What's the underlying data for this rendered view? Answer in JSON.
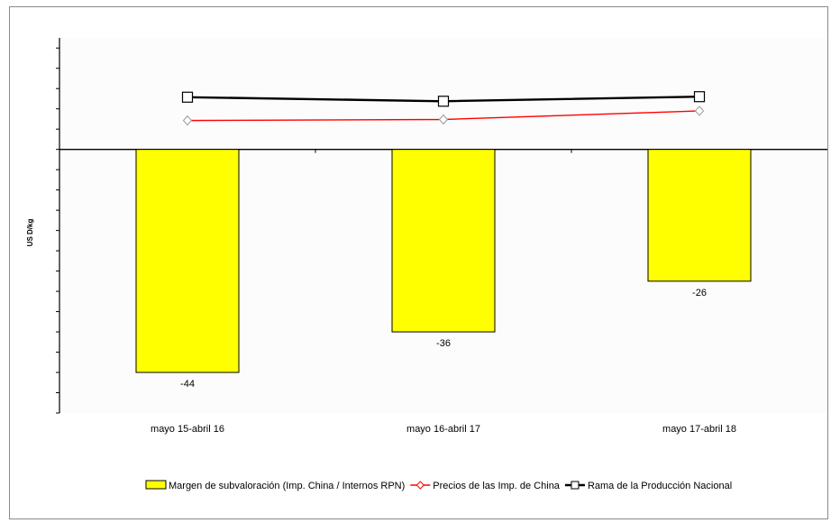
{
  "chart_data": {
    "type": "bar",
    "title": "",
    "xlabel": "",
    "ylabel": "US D/kg",
    "categories": [
      "mayo 15-abril 16",
      "mayo 16-abril 17",
      "mayo 17-abril 18"
    ],
    "ylim": [
      -52,
      22
    ],
    "grid": false,
    "legend_position": "bottom",
    "series": [
      {
        "name": "Margen de subvaloración (Imp. China / Internos RPN)",
        "kind": "bar",
        "values": [
          -44,
          -36,
          -26
        ],
        "labels": [
          "-44",
          "-36",
          "-26"
        ],
        "color": "#ffff00"
      },
      {
        "name": "Precios de las Imp. de China",
        "kind": "line",
        "marker": "diamond",
        "values": [
          5.7,
          5.9,
          7.6
        ],
        "color": "#ff0000"
      },
      {
        "name": "Rama de la Producción Nacional",
        "kind": "line",
        "marker": "square",
        "values": [
          10.3,
          9.5,
          10.4
        ],
        "color": "#000000"
      }
    ]
  }
}
